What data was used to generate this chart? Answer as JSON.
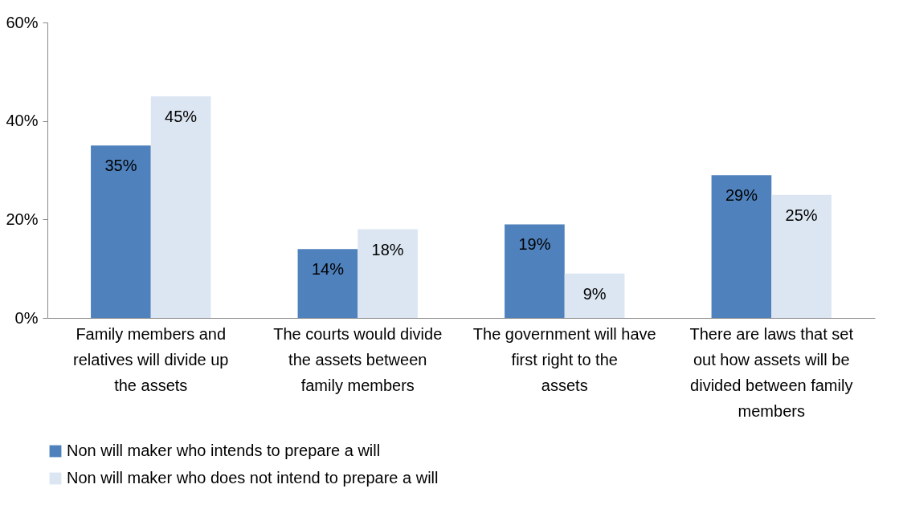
{
  "chart_data": {
    "type": "bar",
    "categories": [
      "Family members and relatives will divide up the assets",
      "The courts would divide the assets between family members",
      "The government will have first right to the assets",
      "There are laws that set out how assets will be divided between family members"
    ],
    "series": [
      {
        "name": "Non will maker who intends to prepare a will",
        "color": "#4f81bd",
        "values": [
          35,
          14,
          19,
          29
        ],
        "value_labels": [
          "35%",
          "14%",
          "19%",
          "29%"
        ]
      },
      {
        "name": "Non will maker who does not intend to prepare a will",
        "color": "#dce6f2",
        "values": [
          45,
          18,
          9,
          25
        ],
        "value_labels": [
          "45%",
          "18%",
          "9%",
          "25%"
        ]
      }
    ],
    "ylim": [
      0,
      60
    ],
    "yticks": [
      {
        "value": 0,
        "label": "0%"
      },
      {
        "value": 20,
        "label": "20%"
      },
      {
        "value": 40,
        "label": "40%"
      },
      {
        "value": 60,
        "label": "60%"
      }
    ],
    "grid": false,
    "legend": "bottom"
  }
}
